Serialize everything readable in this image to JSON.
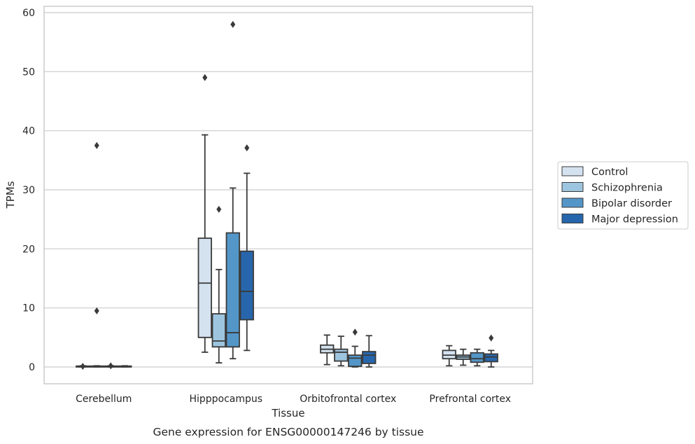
{
  "chart_data": {
    "type": "boxplot",
    "title": "",
    "caption": "Gene expression for ENSG00000147246 by tissue",
    "xlabel": "Tissue",
    "ylabel": "TPMs",
    "ylim": [
      -2.8,
      61
    ],
    "yticks": [
      0,
      10,
      20,
      30,
      40,
      50,
      60
    ],
    "grid": "horizontal",
    "legend_position": "right",
    "categories": [
      "Cerebellum",
      "Hipppocampus",
      "Orbitofrontal cortex",
      "Prefrontal cortex"
    ],
    "series": [
      {
        "name": "Control",
        "color": "#d4e2f0",
        "boxes": [
          {
            "whisker_low": 0.0,
            "q1": 0.0,
            "median": 0.05,
            "q3": 0.15,
            "whisker_high": 0.2,
            "outliers": [
              0.1
            ]
          },
          {
            "whisker_low": 2.5,
            "q1": 5.0,
            "median": 14.2,
            "q3": 21.8,
            "whisker_high": 39.3,
            "outliers": [
              49.0
            ]
          },
          {
            "whisker_low": 0.4,
            "q1": 2.4,
            "median": 3.0,
            "q3": 3.7,
            "whisker_high": 5.4,
            "outliers": []
          },
          {
            "whisker_low": 0.2,
            "q1": 1.4,
            "median": 2.0,
            "q3": 2.8,
            "whisker_high": 3.6,
            "outliers": []
          }
        ]
      },
      {
        "name": "Schizophrenia",
        "color": "#9ec5df",
        "boxes": [
          {
            "whisker_low": 0.0,
            "q1": 0.0,
            "median": 0.05,
            "q3": 0.15,
            "whisker_high": 0.2,
            "outliers": [
              37.5,
              9.5
            ]
          },
          {
            "whisker_low": 0.7,
            "q1": 3.4,
            "median": 4.4,
            "q3": 9.0,
            "whisker_high": 16.5,
            "outliers": [
              26.7
            ]
          },
          {
            "whisker_low": 0.2,
            "q1": 1.0,
            "median": 2.5,
            "q3": 3.0,
            "whisker_high": 5.2,
            "outliers": []
          },
          {
            "whisker_low": 0.3,
            "q1": 1.3,
            "median": 1.7,
            "q3": 2.0,
            "whisker_high": 3.0,
            "outliers": []
          }
        ]
      },
      {
        "name": "Bipolar disorder",
        "color": "#5496c8",
        "boxes": [
          {
            "whisker_low": 0.0,
            "q1": 0.0,
            "median": 0.05,
            "q3": 0.15,
            "whisker_high": 0.2,
            "outliers": [
              0.2
            ]
          },
          {
            "whisker_low": 1.4,
            "q1": 3.4,
            "median": 5.8,
            "q3": 22.7,
            "whisker_high": 30.3,
            "outliers": [
              58.0
            ]
          },
          {
            "whisker_low": 0.0,
            "q1": 0.1,
            "median": 1.5,
            "q3": 2.0,
            "whisker_high": 3.5,
            "outliers": [
              5.9
            ]
          },
          {
            "whisker_low": 0.2,
            "q1": 0.8,
            "median": 1.4,
            "q3": 2.4,
            "whisker_high": 3.0,
            "outliers": []
          }
        ]
      },
      {
        "name": "Major depression",
        "color": "#2766ac",
        "boxes": [
          {
            "whisker_low": 0.0,
            "q1": 0.0,
            "median": 0.05,
            "q3": 0.15,
            "whisker_high": 0.2,
            "outliers": []
          },
          {
            "whisker_low": 2.8,
            "q1": 8.0,
            "median": 12.8,
            "q3": 19.6,
            "whisker_high": 32.8,
            "outliers": [
              37.1
            ]
          },
          {
            "whisker_low": 0.0,
            "q1": 0.6,
            "median": 2.0,
            "q3": 2.6,
            "whisker_high": 5.3,
            "outliers": []
          },
          {
            "whisker_low": 0.0,
            "q1": 0.9,
            "median": 1.7,
            "q3": 2.2,
            "whisker_high": 2.8,
            "outliers": [
              4.9
            ]
          }
        ]
      }
    ]
  }
}
